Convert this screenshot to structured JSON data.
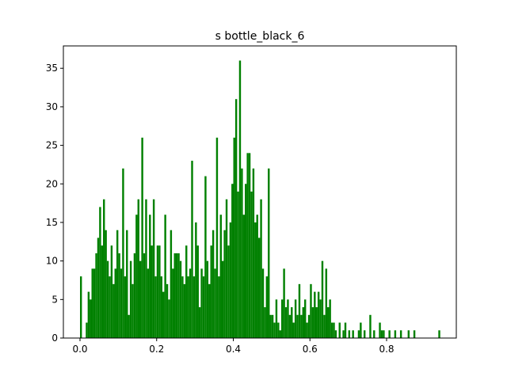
{
  "chart_data": {
    "type": "histogram",
    "title": "s bottle_black_6",
    "color": "#008000",
    "bins": [
      0,
      0.005,
      0.01,
      0.015,
      0.02,
      0.025,
      0.03,
      0.035,
      0.04,
      0.045,
      0.05,
      0.055,
      0.06,
      0.065,
      0.07,
      0.075,
      0.08,
      0.085,
      0.09,
      0.095,
      0.1,
      0.105,
      0.11,
      0.115,
      0.12,
      0.125,
      0.13,
      0.135,
      0.14,
      0.145,
      0.15,
      0.155,
      0.16,
      0.165,
      0.17,
      0.175,
      0.18,
      0.185,
      0.19,
      0.195,
      0.2,
      0.205,
      0.21,
      0.215,
      0.22,
      0.225,
      0.23,
      0.235,
      0.24,
      0.245,
      0.25,
      0.255,
      0.26,
      0.265,
      0.27,
      0.275,
      0.28,
      0.285,
      0.29,
      0.295,
      0.3,
      0.305,
      0.31,
      0.315,
      0.32,
      0.325,
      0.33,
      0.335,
      0.34,
      0.345,
      0.35,
      0.355,
      0.36,
      0.365,
      0.37,
      0.375,
      0.38,
      0.385,
      0.39,
      0.395,
      0.4,
      0.405,
      0.41,
      0.415,
      0.42,
      0.425,
      0.43,
      0.435,
      0.44,
      0.445,
      0.45,
      0.455,
      0.46,
      0.465,
      0.47,
      0.475,
      0.48,
      0.485,
      0.49,
      0.495,
      0.5,
      0.505,
      0.51,
      0.515,
      0.52,
      0.525,
      0.53,
      0.535,
      0.54,
      0.545,
      0.55,
      0.555,
      0.56,
      0.565,
      0.57,
      0.575,
      0.58,
      0.585,
      0.59,
      0.595,
      0.6,
      0.605,
      0.61,
      0.615,
      0.62,
      0.625,
      0.63,
      0.635,
      0.64,
      0.645,
      0.65,
      0.655,
      0.66,
      0.665,
      0.67,
      0.675,
      0.68,
      0.685,
      0.69,
      0.695,
      0.7,
      0.705,
      0.71,
      0.715,
      0.72,
      0.725,
      0.73,
      0.735,
      0.74,
      0.745,
      0.75,
      0.755,
      0.76,
      0.765,
      0.77,
      0.775,
      0.78,
      0.785,
      0.79,
      0.795,
      0.8,
      0.805,
      0.81,
      0.815,
      0.82,
      0.825,
      0.83,
      0.835,
      0.84,
      0.845,
      0.85,
      0.855,
      0.86,
      0.865,
      0.87,
      0.875,
      0.88,
      0.885,
      0.89,
      0.895,
      0.9,
      0.905,
      0.91,
      0.915,
      0.92,
      0.925,
      0.93,
      0.935,
      0.94
    ],
    "values": [
      8,
      0,
      0,
      2,
      6,
      5,
      9,
      9,
      11,
      13,
      17,
      12,
      18,
      14,
      10,
      8,
      12,
      7,
      9,
      14,
      11,
      9,
      22,
      8,
      14,
      3,
      10,
      7,
      11,
      16,
      18,
      10,
      26,
      11,
      18,
      9,
      16,
      12,
      18,
      8,
      12,
      12,
      8,
      6,
      16,
      7,
      5,
      14,
      9,
      11,
      11,
      11,
      10,
      8,
      7,
      12,
      8,
      9,
      23,
      8,
      15,
      12,
      4,
      9,
      8,
      21,
      10,
      7,
      12,
      14,
      9,
      26,
      8,
      16,
      10,
      14,
      18,
      12,
      15,
      20,
      26,
      31,
      19,
      36,
      22,
      16,
      20,
      24,
      24,
      19,
      22,
      15,
      16,
      13,
      18,
      9,
      4,
      8,
      22,
      3,
      3,
      2,
      5,
      2,
      1,
      5,
      9,
      4,
      5,
      3,
      4,
      2,
      5,
      3,
      7,
      3,
      4,
      5,
      2,
      3,
      7,
      4,
      6,
      4,
      6,
      5,
      10,
      3,
      9,
      4,
      5,
      2,
      2,
      1,
      0,
      2,
      0,
      1,
      2,
      0,
      1,
      0,
      1,
      0,
      0,
      1,
      2,
      0,
      1,
      0,
      0,
      3,
      0,
      1,
      0,
      0,
      2,
      1,
      1,
      0,
      0,
      1,
      0,
      0,
      1,
      0,
      0,
      1,
      0,
      0,
      0,
      1,
      0,
      0,
      1,
      0,
      0,
      0,
      0,
      0,
      0,
      0,
      0,
      0,
      0,
      0,
      0,
      1
    ],
    "xlim": [
      -0.0434,
      0.9819
    ],
    "ylim": [
      0,
      37.9
    ],
    "xticks": [
      {
        "value": 0,
        "label": "0.0"
      },
      {
        "value": 0.2,
        "label": "0.2"
      },
      {
        "value": 0.4,
        "label": "0.4"
      },
      {
        "value": 0.6,
        "label": "0.6"
      },
      {
        "value": 0.8,
        "label": "0.8"
      }
    ],
    "yticks": [
      0,
      5,
      10,
      15,
      20,
      25,
      30,
      35
    ]
  }
}
